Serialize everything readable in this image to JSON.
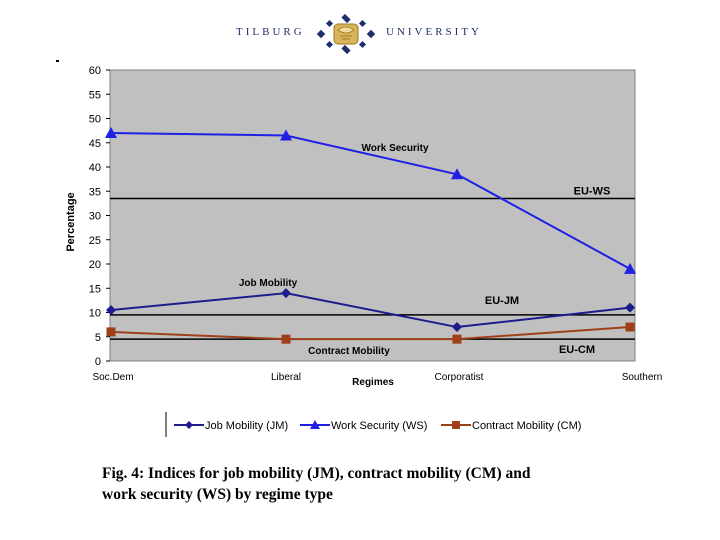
{
  "header": {
    "left_word": "TILBURG",
    "right_word": "UNIVERSITY",
    "logo_icon": "tilburg-crest-icon"
  },
  "chart_data": {
    "type": "line",
    "title": "",
    "xlabel": "Regimes",
    "ylabel": "Percentage",
    "categories": [
      "Soc.Dem",
      "Liberal",
      "Corporatist",
      "Southern"
    ],
    "ylim": [
      0,
      60
    ],
    "yticks": [
      0,
      5,
      10,
      15,
      20,
      25,
      30,
      35,
      40,
      45,
      50,
      55,
      60
    ],
    "series": [
      {
        "name": "Job Mobility (JM)",
        "marker": "diamond",
        "color": "#1c1c8c",
        "values": [
          10.5,
          14,
          7,
          11
        ],
        "label": "Job Mobility",
        "label_at": 1
      },
      {
        "name": "Work Security (WS)",
        "marker": "triangle",
        "color": "#1f1fe6",
        "values": [
          47,
          46.5,
          38.5,
          19
        ],
        "label": "Work Security",
        "label_at": 2
      },
      {
        "name": "Contract Mobility (CM)",
        "marker": "square",
        "color": "#a0401a",
        "values": [
          6,
          4.5,
          4.5,
          7
        ],
        "label": "Contract Mobility",
        "label_at": 1
      }
    ],
    "reference_lines": [
      {
        "name": "EU-WS",
        "value": 33.5
      },
      {
        "name": "EU-JM",
        "value": 9.5
      },
      {
        "name": "EU-CM",
        "value": 4.5
      }
    ],
    "legend_position": "bottom"
  },
  "caption": {
    "line1": "Fig. 4: Indices for job mobility (JM), contract mobility (CM) and",
    "line2": "work security (WS) by regime type"
  }
}
